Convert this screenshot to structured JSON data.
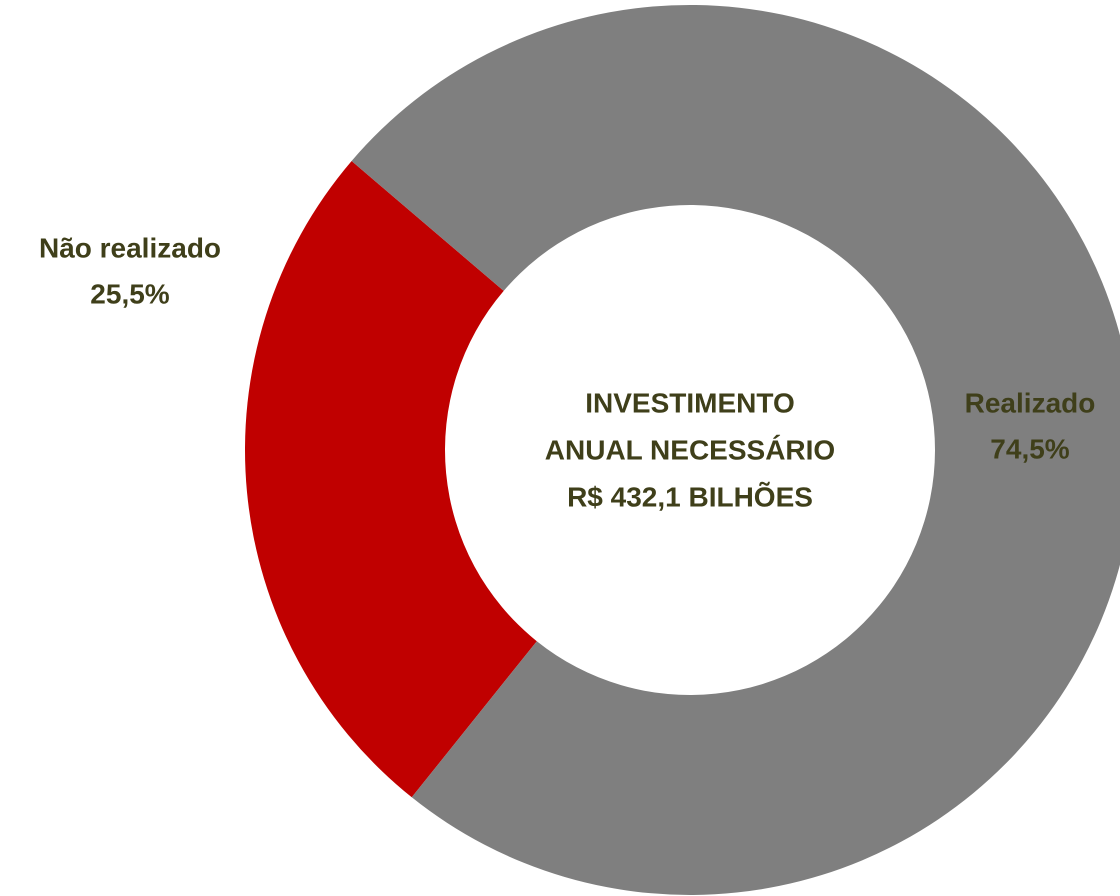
{
  "chart_data": {
    "type": "donut",
    "categories": [
      "Não realizado",
      "Realizado"
    ],
    "values": [
      25.5,
      74.5
    ],
    "value_labels": [
      "25,5%",
      "74,5%"
    ],
    "colors": [
      "#c00000",
      "#7f7f7f"
    ],
    "center_text": [
      "INVESTIMENTO",
      "ANUAL NECESSÁRIO",
      "R$ 432,1 BILHÕES"
    ]
  }
}
